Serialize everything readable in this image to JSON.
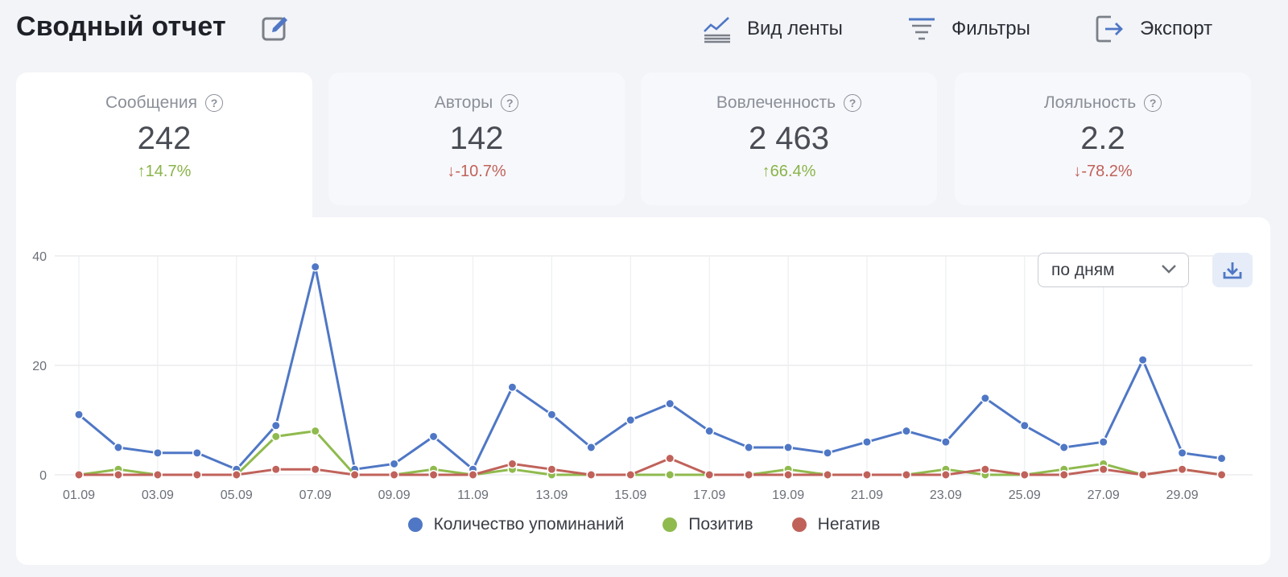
{
  "header": {
    "title": "Сводный отчет",
    "actions": [
      {
        "label": "Вид ленты",
        "icon": "chart-lines-icon"
      },
      {
        "label": "Фильтры",
        "icon": "filter-icon"
      },
      {
        "label": "Экспорт",
        "icon": "export-icon"
      }
    ]
  },
  "kpis": [
    {
      "label": "Сообщения",
      "value": "242",
      "delta": "↑14.7%",
      "trend": "up"
    },
    {
      "label": "Авторы",
      "value": "142",
      "delta": "↓-10.7%",
      "trend": "down"
    },
    {
      "label": "Вовлеченность",
      "value": "2 463",
      "delta": "↑66.4%",
      "trend": "up"
    },
    {
      "label": "Лояльность",
      "value": "2.2",
      "delta": "↓-78.2%",
      "trend": "down"
    }
  ],
  "help_glyph": "?",
  "controls": {
    "period_value": "по дням"
  },
  "colors": {
    "blue": "#4f77c5",
    "green": "#8fba4d",
    "red": "#c0625a",
    "accent": "#4f77c5"
  },
  "chart_data": {
    "type": "line",
    "x": [
      "01.09",
      "02.09",
      "03.09",
      "04.09",
      "05.09",
      "06.09",
      "07.09",
      "08.09",
      "09.09",
      "10.09",
      "11.09",
      "12.09",
      "13.09",
      "14.09",
      "15.09",
      "16.09",
      "17.09",
      "18.09",
      "19.09",
      "20.09",
      "21.09",
      "22.09",
      "23.09",
      "24.09",
      "25.09",
      "26.09",
      "27.09",
      "28.09",
      "29.09",
      "30.09"
    ],
    "x_tick_labels": [
      "01.09",
      "03.09",
      "05.09",
      "07.09",
      "09.09",
      "11.09",
      "13.09",
      "15.09",
      "17.09",
      "19.09",
      "21.09",
      "23.09",
      "25.09",
      "27.09",
      "29.09"
    ],
    "y_ticks": [
      0,
      20,
      40
    ],
    "ylim": [
      0,
      40
    ],
    "grid": true,
    "legend_position": "bottom",
    "series": [
      {
        "name": "Количество упоминаний",
        "color": "#4f77c5",
        "values": [
          11,
          5,
          4,
          4,
          1,
          9,
          38,
          1,
          2,
          7,
          1,
          16,
          11,
          5,
          10,
          13,
          8,
          5,
          5,
          4,
          6,
          8,
          6,
          14,
          9,
          5,
          6,
          21,
          4,
          3
        ]
      },
      {
        "name": "Позитив",
        "color": "#8fba4d",
        "values": [
          0,
          1,
          0,
          0,
          0,
          7,
          8,
          0,
          0,
          1,
          0,
          1,
          0,
          0,
          0,
          0,
          0,
          0,
          1,
          0,
          0,
          0,
          1,
          0,
          0,
          1,
          2,
          0,
          1,
          0
        ]
      },
      {
        "name": "Негатив",
        "color": "#c0625a",
        "values": [
          0,
          0,
          0,
          0,
          0,
          1,
          1,
          0,
          0,
          0,
          0,
          2,
          1,
          0,
          0,
          3,
          0,
          0,
          0,
          0,
          0,
          0,
          0,
          1,
          0,
          0,
          1,
          0,
          1,
          0
        ]
      }
    ]
  }
}
